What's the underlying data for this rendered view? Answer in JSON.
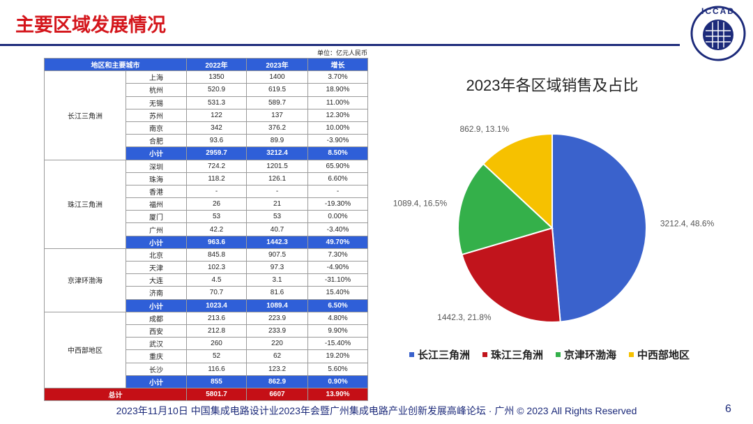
{
  "header": {
    "title": "主要区域发展情况",
    "logo": "ICCAD"
  },
  "table": {
    "unit": "单位：亿元人民币",
    "columns": [
      "地区和主要城市",
      "2022年",
      "2023年",
      "增长"
    ],
    "groups": [
      {
        "region": "长江三角洲",
        "rows": [
          [
            "上海",
            "1350",
            "1400",
            "3.70%"
          ],
          [
            "杭州",
            "520.9",
            "619.5",
            "18.90%"
          ],
          [
            "无锡",
            "531.3",
            "589.7",
            "11.00%"
          ],
          [
            "苏州",
            "122",
            "137",
            "12.30%"
          ],
          [
            "南京",
            "342",
            "376.2",
            "10.00%"
          ],
          [
            "合肥",
            "93.6",
            "89.9",
            "-3.90%"
          ]
        ],
        "subtotal": [
          "小计",
          "2959.7",
          "3212.4",
          "8.50%"
        ]
      },
      {
        "region": "珠江三角洲",
        "rows": [
          [
            "深圳",
            "724.2",
            "1201.5",
            "65.90%"
          ],
          [
            "珠海",
            "118.2",
            "126.1",
            "6.60%"
          ],
          [
            "香港",
            "-",
            "-",
            "-"
          ],
          [
            "福州",
            "26",
            "21",
            "-19.30%"
          ],
          [
            "厦门",
            "53",
            "53",
            "0.00%"
          ],
          [
            "广州",
            "42.2",
            "40.7",
            "-3.40%"
          ]
        ],
        "subtotal": [
          "小计",
          "963.6",
          "1442.3",
          "49.70%"
        ]
      },
      {
        "region": "京津环渤海",
        "rows": [
          [
            "北京",
            "845.8",
            "907.5",
            "7.30%"
          ],
          [
            "天津",
            "102.3",
            "97.3",
            "-4.90%"
          ],
          [
            "大连",
            "4.5",
            "3.1",
            "-31.10%"
          ],
          [
            "济南",
            "70.7",
            "81.6",
            "15.40%"
          ]
        ],
        "subtotal": [
          "小计",
          "1023.4",
          "1089.4",
          "6.50%"
        ]
      },
      {
        "region": "中西部地区",
        "rows": [
          [
            "成都",
            "213.6",
            "223.9",
            "4.80%"
          ],
          [
            "西安",
            "212.8",
            "233.9",
            "9.90%"
          ],
          [
            "武汉",
            "260",
            "220",
            "-15.40%"
          ],
          [
            "重庆",
            "52",
            "62",
            "19.20%"
          ],
          [
            "长沙",
            "116.6",
            "123.2",
            "5.60%"
          ]
        ],
        "subtotal": [
          "小计",
          "855",
          "862.9",
          "0.90%"
        ]
      }
    ],
    "total": [
      "总计",
      "5801.7",
      "6607",
      "13.90%"
    ]
  },
  "chart_data": {
    "type": "pie",
    "title": "2023年各区域销售及占比",
    "categories": [
      "长江三角洲",
      "珠江三角洲",
      "京津环渤海",
      "中西部地区"
    ],
    "values": [
      3212.4,
      1442.3,
      1089.4,
      862.9
    ],
    "value_labels": [
      "3212.4, 48.6%",
      "1442.3, 21.8%",
      "1089.4, 16.5%",
      "862.9, 13.1%"
    ],
    "colors": [
      "#3a62cc",
      "#c1141c",
      "#34b04a",
      "#f6c100"
    ],
    "legend": "bottom"
  },
  "footer": {
    "text": "2023年11月10日 中国集成电路设计业2023年会暨广州集成电路产业创新发展高峰论坛 · 广州 © 2023 All Rights Reserved",
    "page": "6"
  }
}
